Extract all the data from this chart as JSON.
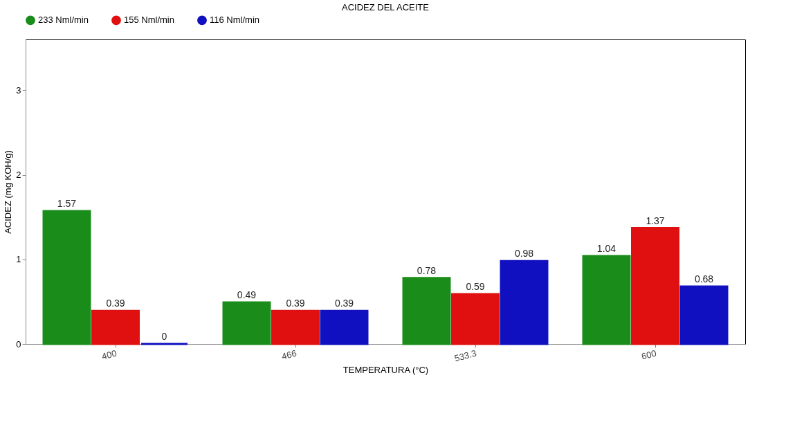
{
  "chart_data": {
    "type": "bar",
    "title": "ACIDEZ DEL ACEITE",
    "xlabel": "TEMPERATURA (°C)",
    "ylabel": "ACIDEZ (mg KOH/g)",
    "categories": [
      "400",
      "466",
      "533.3",
      "600"
    ],
    "series": [
      {
        "name": "233 Nml/min",
        "color": "#1a8c1a",
        "values": [
          1.57,
          0.49,
          0.78,
          1.04
        ]
      },
      {
        "name": "155 Nml/min",
        "color": "#e01010",
        "values": [
          0.39,
          0.39,
          0.59,
          1.37
        ]
      },
      {
        "name": "116 Nml/min",
        "color": "#1010c0",
        "values": [
          0,
          0.39,
          0.98,
          0.68
        ]
      }
    ],
    "ylim": [
      0,
      3.6
    ],
    "yticks": [
      0,
      1,
      2,
      3
    ],
    "grid": false,
    "legend": "top left",
    "data_labels": true
  }
}
